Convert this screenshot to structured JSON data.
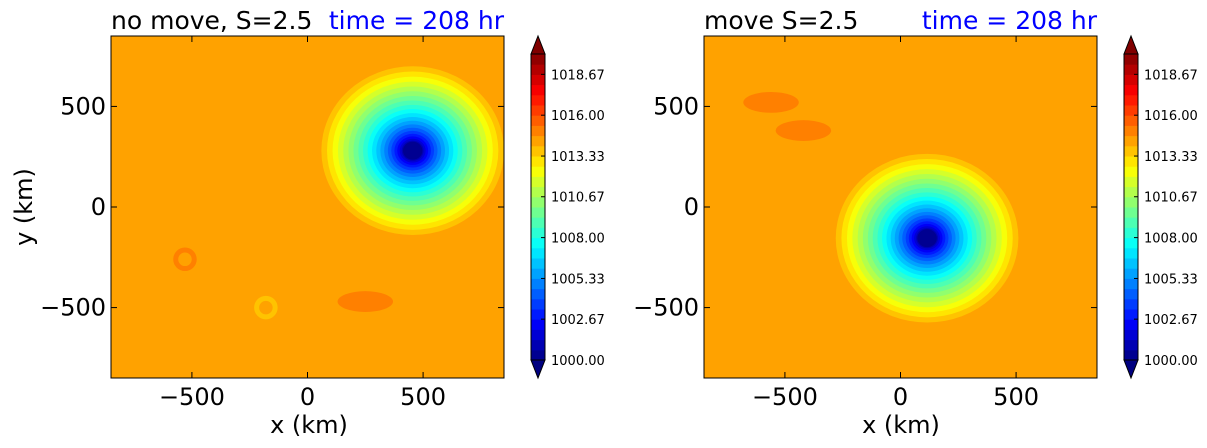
{
  "chart_data": [
    {
      "type": "heatmap",
      "title": "no move, S=2.5",
      "time_label": "time = 208 hr",
      "xlabel": "x (km)",
      "ylabel": "y (km)",
      "xlim": [
        -850,
        850
      ],
      "ylim": [
        -850,
        850
      ],
      "xticks": [
        "−500",
        "0",
        "500"
      ],
      "xtick_values": [
        -500,
        0,
        500
      ],
      "yticks": [
        "500",
        "0",
        "−500"
      ],
      "ytick_values": [
        500,
        0,
        -500
      ],
      "background_value": 1014.4,
      "low_center": {
        "x": 455,
        "y": 280,
        "min_value": 1000.0
      },
      "features": [
        {
          "kind": "ring",
          "x": -530,
          "y": -260,
          "value": 1015.2
        },
        {
          "kind": "ring",
          "x": -180,
          "y": -500,
          "value": 1013.7
        },
        {
          "kind": "patch",
          "x": 250,
          "y": -470,
          "value": 1015.2
        }
      ]
    },
    {
      "type": "heatmap",
      "title": "move S=2.5",
      "time_label": "time = 208 hr",
      "xlabel": "x (km)",
      "ylabel": "",
      "xlim": [
        -850,
        850
      ],
      "ylim": [
        -850,
        850
      ],
      "xticks": [
        "−500",
        "0",
        "500"
      ],
      "xtick_values": [
        -500,
        0,
        500
      ],
      "yticks": [
        "500",
        "0",
        "−500"
      ],
      "ytick_values": [
        500,
        0,
        -500
      ],
      "background_value": 1014.4,
      "low_center": {
        "x": 115,
        "y": -155,
        "min_value": 1000.0
      },
      "features": [
        {
          "kind": "patch",
          "x": -560,
          "y": 520,
          "value": 1015.2
        },
        {
          "kind": "patch",
          "x": -420,
          "y": 380,
          "value": 1015.2
        }
      ]
    }
  ],
  "colorbar": {
    "min": 1000.0,
    "max": 1020.0,
    "levels": 30,
    "ticks": [
      "1018.67",
      "1016.00",
      "1013.33",
      "1010.67",
      "1008.00",
      "1005.33",
      "1002.67",
      "1000.00"
    ],
    "tick_values": [
      1018.67,
      1016.0,
      1013.33,
      1010.67,
      1008.0,
      1005.33,
      1002.67,
      1000.0
    ],
    "colormap": "jet"
  }
}
